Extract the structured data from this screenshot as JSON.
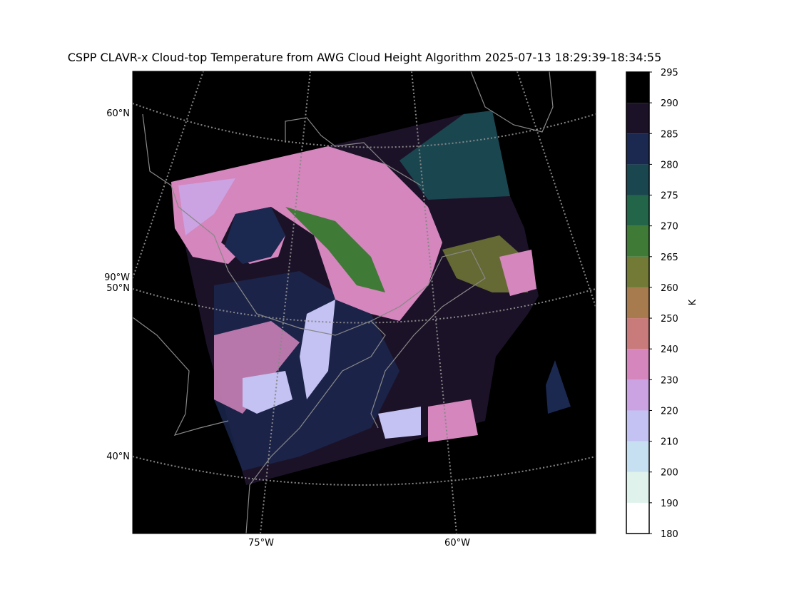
{
  "title": "CSPP CLAVR-x Cloud-top Temperature from AWG Cloud Height Algorithm 2025-07-13 18:29:39-18:34:55",
  "map": {
    "lat_labels": [
      "60°N",
      "50°N",
      "40°N"
    ],
    "lon_labels": [
      "90°W",
      "75°W",
      "60°W"
    ]
  },
  "colorbar": {
    "label": "K",
    "ticks": [
      180,
      190,
      200,
      210,
      220,
      230,
      240,
      250,
      260,
      265,
      270,
      275,
      280,
      285,
      290,
      295
    ],
    "colors": [
      "#ffffff",
      "#dff2ec",
      "#c6e0f2",
      "#c3c2f2",
      "#cba3e3",
      "#d486bd",
      "#c97a7a",
      "#a77b4e",
      "#727a36",
      "#3f7a36",
      "#226549",
      "#1a4650",
      "#1b2850",
      "#1c1228",
      "#000000"
    ]
  }
}
